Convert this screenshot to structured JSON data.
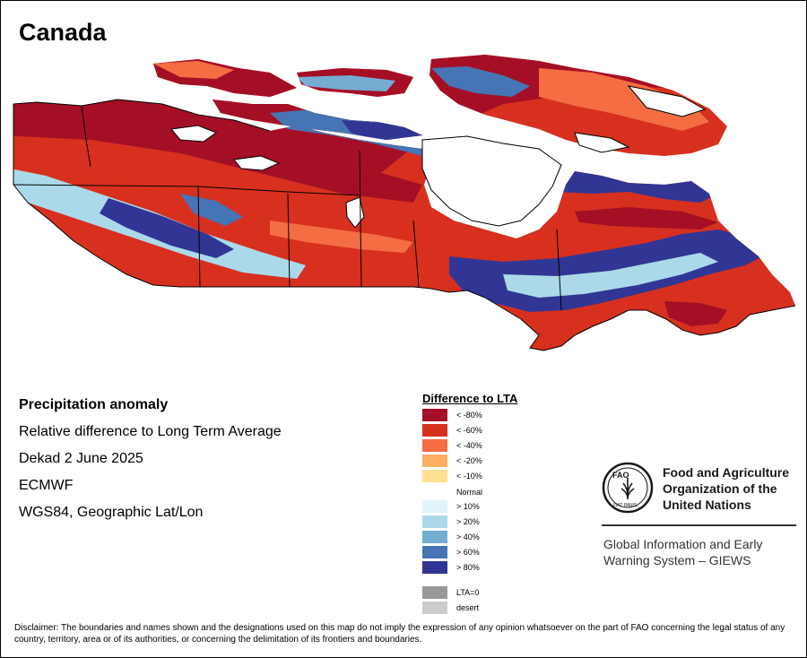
{
  "title": "Canada",
  "info": {
    "heading": "Precipitation anomaly",
    "description": "Relative difference to Long Term Average",
    "period": "Dekad 2 June 2025",
    "source": "ECMWF",
    "projection": "WGS84, Geographic Lat/Lon"
  },
  "legend": {
    "title": "Difference to LTA",
    "classes": [
      {
        "label": "< -80%",
        "color": "#a50f26"
      },
      {
        "label": "< -60%",
        "color": "#d7301f"
      },
      {
        "label": "< -40%",
        "color": "#f46d43"
      },
      {
        "label": "< -20%",
        "color": "#fdae61"
      },
      {
        "label": "< -10%",
        "color": "#fee090"
      },
      {
        "label": "> 10%",
        "color": "#e0f3f8"
      },
      {
        "label": "> 20%",
        "color": "#abd9e9"
      },
      {
        "label": "> 40%",
        "color": "#74add1"
      },
      {
        "label": "> 60%",
        "color": "#4575b4"
      },
      {
        "label": "> 80%",
        "color": "#313695"
      }
    ],
    "normal_label": "Normal",
    "extra_classes": [
      {
        "label": "LTA=0",
        "color": "#999999"
      },
      {
        "label": "desert",
        "color": "#cccccc"
      }
    ]
  },
  "organization": {
    "name_lines": [
      "Food and Agriculture",
      "Organization of the",
      "United Nations"
    ],
    "emblem_text": "FAO",
    "emblem_motto": "FIAT PANIS",
    "system_lines": [
      "Global Information and Early",
      "Warning System – GIEWS"
    ]
  },
  "disclaimer": "Disclaimer: The boundaries and names shown and the designations used on this map do not imply the expression of any opinion whatsoever on the part of FAO concerning the legal status of any country, territory, area or of its authorities, or concerning the delimitation of its frontiers and boundaries.",
  "map_colors": {
    "land_outline": "#000000",
    "water": "#ffffff",
    "dry_strong": "#a50f26",
    "dry": "#d7301f",
    "dry_light": "#f46d43",
    "wet_strong": "#313695",
    "wet": "#4575b4",
    "wet_light": "#abd9e9"
  }
}
